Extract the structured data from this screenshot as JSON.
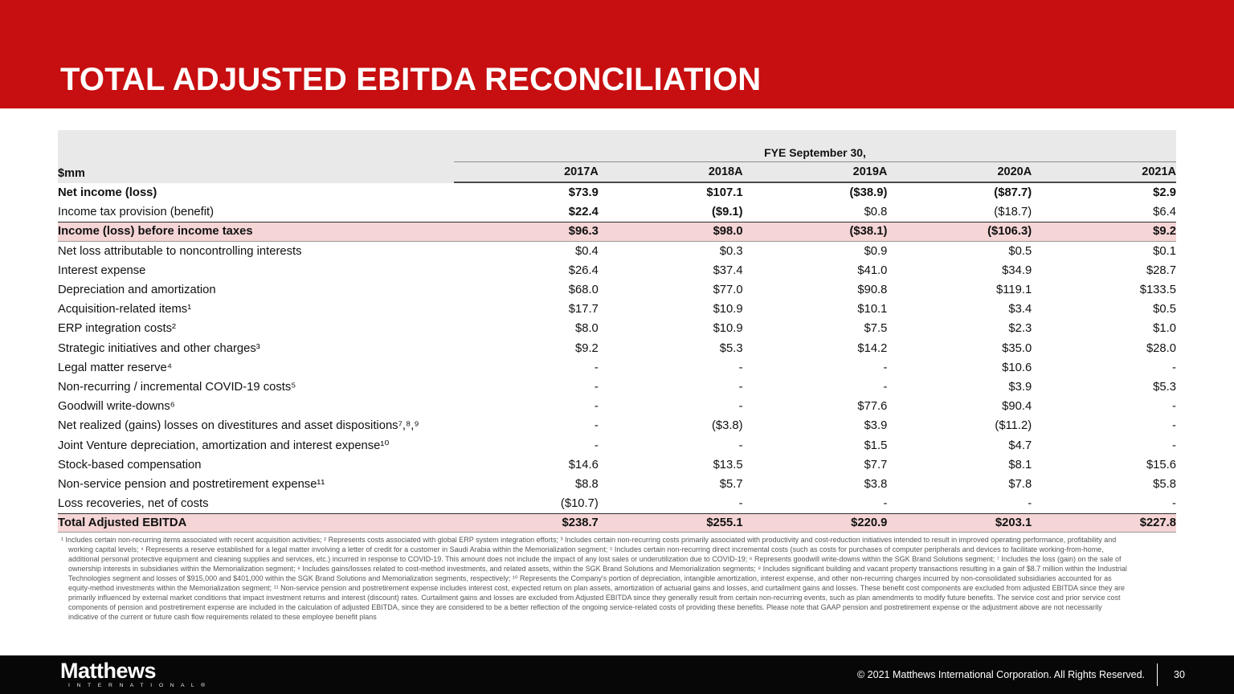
{
  "slide": {
    "title": "TOTAL ADJUSTED EBITDA RECONCILIATION",
    "accent_color": "#c70e10",
    "highlight_color": "#f5d5d6",
    "header_gray": "#e9e9e9"
  },
  "table": {
    "group_header": "FYE September 30,",
    "unit_label": "$mm",
    "columns": [
      "2017A",
      "2018A",
      "2019A",
      "2020A",
      "2021A"
    ],
    "rows": [
      {
        "label": "Net income (loss)",
        "style": "bold",
        "values": [
          "$73.9",
          "$107.1",
          "($38.9)",
          "($87.7)",
          "$2.9"
        ]
      },
      {
        "label": "Income tax provision (benefit)",
        "style": "normal",
        "value_bold": [
          true,
          true,
          false,
          false,
          false
        ],
        "values": [
          "$22.4",
          "($9.1)",
          "$0.8",
          "($18.7)",
          "$6.4"
        ]
      },
      {
        "label": "Income (loss) before income taxes",
        "style": "highlight",
        "values": [
          "$96.3",
          "$98.0",
          "($38.1)",
          "($106.3)",
          "$9.2"
        ]
      },
      {
        "label": "Net loss attributable to noncontrolling interests",
        "style": "normal",
        "values": [
          "$0.4",
          "$0.3",
          "$0.9",
          "$0.5",
          "$0.1"
        ]
      },
      {
        "label": "Interest expense",
        "style": "normal",
        "values": [
          "$26.4",
          "$37.4",
          "$41.0",
          "$34.9",
          "$28.7"
        ]
      },
      {
        "label": "Depreciation and amortization",
        "style": "normal",
        "values": [
          "$68.0",
          "$77.0",
          "$90.8",
          "$119.1",
          "$133.5"
        ]
      },
      {
        "label": "Acquisition-related items¹",
        "style": "normal",
        "values": [
          "$17.7",
          "$10.9",
          "$10.1",
          "$3.4",
          "$0.5"
        ]
      },
      {
        "label": "ERP integration costs²",
        "style": "normal",
        "values": [
          "$8.0",
          "$10.9",
          "$7.5",
          "$2.3",
          "$1.0"
        ]
      },
      {
        "label": "Strategic initiatives and other charges³",
        "style": "normal",
        "values": [
          "$9.2",
          "$5.3",
          "$14.2",
          "$35.0",
          "$28.0"
        ]
      },
      {
        "label": "Legal matter reserve⁴",
        "style": "normal",
        "values": [
          "-",
          "-",
          "-",
          "$10.6",
          "-"
        ]
      },
      {
        "label": "Non-recurring / incremental COVID-19 costs⁵",
        "style": "normal",
        "values": [
          "-",
          "-",
          "-",
          "$3.9",
          "$5.3"
        ]
      },
      {
        "label": "Goodwill write-downs⁶",
        "style": "normal",
        "values": [
          "-",
          "-",
          "$77.6",
          "$90.4",
          "-"
        ]
      },
      {
        "label": "Net realized (gains) losses on divestitures and asset dispositions⁷,⁸,⁹",
        "style": "normal",
        "values": [
          "-",
          "($3.8)",
          "$3.9",
          "($11.2)",
          "-"
        ]
      },
      {
        "label": "Joint Venture depreciation, amortization and interest expense¹⁰",
        "style": "normal",
        "values": [
          "-",
          "-",
          "$1.5",
          "$4.7",
          "-"
        ]
      },
      {
        "label": "Stock-based compensation",
        "style": "normal",
        "values": [
          "$14.6",
          "$13.5",
          "$7.7",
          "$8.1",
          "$15.6"
        ]
      },
      {
        "label": "Non-service pension and postretirement expense¹¹",
        "style": "normal",
        "values": [
          "$8.8",
          "$5.7",
          "$3.8",
          "$7.8",
          "$5.8"
        ]
      },
      {
        "label": "Loss recoveries, net of costs",
        "style": "normal",
        "values": [
          "($10.7)",
          "-",
          "-",
          "-",
          "-"
        ]
      },
      {
        "label": "Total Adjusted EBITDA",
        "style": "highlight",
        "values": [
          "$238.7",
          "$255.1",
          "$220.9",
          "$203.1",
          "$227.8"
        ]
      }
    ]
  },
  "footnotes": {
    "lines": [
      "¹ Includes certain non-recurring items associated with recent acquisition activities; ² Represents costs associated with global ERP system integration efforts; ³ Includes certain non-recurring costs primarily associated with productivity and cost-reduction initiatives intended to result in improved operating performance, profitability and",
      "working capital levels; ⁴ Represents a reserve established for a legal matter involving a letter of credit for a customer in Saudi Arabia within the Memorialization segment; ⁵ Includes certain non-recurring direct incremental costs (such as costs for purchases of computer peripherals and devices to facilitate working-from-home,",
      "additional personal protective equipment and cleaning supplies and services, etc.) incurred in response to COVID-19. This amount does not include the impact of any lost sales or underutilization due to COVID-19; ⁶ Represents goodwill write-downs within the SGK Brand Solutions segment; ⁷ Includes the loss (gain) on the sale of",
      "ownership interests in subsidiaries within the Memorialization segment; ⁸ Includes gains/losses related to cost-method investments, and related assets, within the SGK Brand Solutions and Memorialization segments; ⁹ Includes significant building and vacant property transactions resulting in a gain of $8.7 million within the Industrial",
      "Technologies segment and losses of $915,000 and $401,000 within the SGK Brand Solutions and Memorialization segments, respectively; ¹⁰ Represents the Company's portion of depreciation, intangible amortization, interest expense, and other non-recurring charges incurred by non-consolidated subsidiaries accounted for as",
      "equity-method investments within the Memorialization segment; ¹¹ Non-service pension and postretirement expense includes interest cost, expected return on plan assets, amortization of actuarial gains and losses, and curtailment gains and losses. These benefit cost components are excluded from adjusted EBITDA since they are",
      "primarily influenced by external market conditions that impact investment returns and interest (discount) rates. Curtailment gains and losses are excluded from Adjusted EBITDA since they generally result from certain non-recurring events, such as plan amendments to modify future benefits. The service cost and prior service cost",
      "components of pension and postretirement expense are included in the calculation of adjusted EBITDA, since they are considered to be a better reflection of the ongoing service-related costs of providing these benefits. Please note that GAAP pension and postretirement expense or the adjustment above are not necessarily",
      "indicative of the current or future cash flow requirements related to these employee benefit plans"
    ]
  },
  "footer": {
    "logo_text": "Matthews",
    "logo_subtext": "I N T E R N A T I O N A L ®",
    "copyright": "© 2021 Matthews International Corporation. All Rights Reserved.",
    "page_number": "30"
  }
}
